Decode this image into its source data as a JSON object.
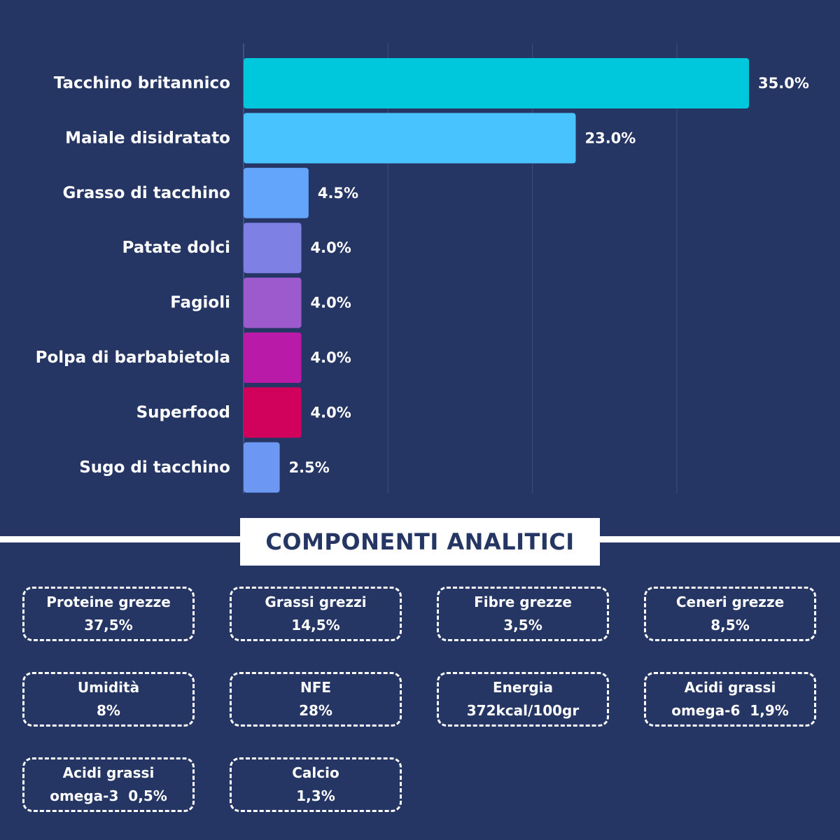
{
  "chart_data": {
    "type": "bar",
    "orientation": "horizontal",
    "categories": [
      "Tacchino britannico",
      "Maiale disidratato",
      "Grasso di tacchino",
      "Patate dolci",
      "Fagioli",
      "Polpa di barbabietola",
      "Superfood",
      "Sugo di tacchino"
    ],
    "values": [
      35.0,
      23.0,
      4.5,
      4.0,
      4.0,
      4.0,
      4.0,
      2.5
    ],
    "value_labels": [
      "35.0%",
      "23.0%",
      "4.5%",
      "4.0%",
      "4.0%",
      "4.0%",
      "4.0%",
      "2.5%"
    ],
    "colors": [
      "#00c8dc",
      "#48c3fd",
      "#62a5fa",
      "#7f80e4",
      "#9d5acd",
      "#b91aa7",
      "#d0025c",
      "#6c97f2"
    ],
    "xlim": [
      0,
      40
    ],
    "grid": true,
    "gridline_values": [
      0,
      10,
      20,
      30
    ]
  },
  "section": {
    "title": "COMPONENTI ANALITICI"
  },
  "components": [
    {
      "name": "Proteine grezze",
      "value": "37,5%"
    },
    {
      "name": "Grassi grezzi",
      "value": "14,5%"
    },
    {
      "name": "Fibre grezze",
      "value": "3,5%"
    },
    {
      "name": "Ceneri grezze",
      "value": "8,5%"
    },
    {
      "name": "Umidità",
      "value": "8%"
    },
    {
      "name": "NFE",
      "value": "28%"
    },
    {
      "name": "Energia",
      "value": "372kcal/100gr"
    },
    {
      "name": "Acidi grassi",
      "value": "omega-6  1,9%"
    },
    {
      "name": "Acidi grassi",
      "value": "omega-3  0,5%"
    },
    {
      "name": "Calcio",
      "value": "1,3%"
    }
  ],
  "colors": {
    "background": "#253664",
    "text": "#ffffff"
  }
}
